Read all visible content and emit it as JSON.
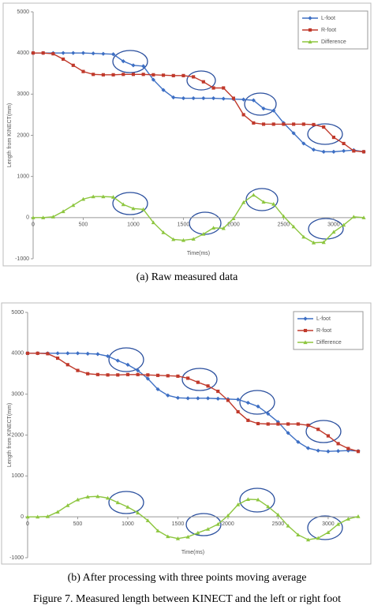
{
  "chart_data": [
    {
      "type": "line",
      "caption": "(a) Raw measured data",
      "x_label": "Time(ms)",
      "y_label": "Length from KINECT(mm)",
      "x": [
        0,
        100,
        200,
        300,
        400,
        500,
        600,
        700,
        800,
        900,
        1000,
        1100,
        1200,
        1300,
        1400,
        1500,
        1600,
        1700,
        1800,
        1900,
        2000,
        2100,
        2200,
        2300,
        2400,
        2500,
        2600,
        2700,
        2800,
        2900,
        3000,
        3100,
        3200,
        3300
      ],
      "series": [
        {
          "name": "L-foot",
          "color": "#3d6fc4",
          "marker": "diamond",
          "values": [
            4000,
            4000,
            4000,
            4000,
            4000,
            4000,
            3990,
            3980,
            3970,
            3800,
            3700,
            3680,
            3350,
            3100,
            2920,
            2900,
            2900,
            2900,
            2900,
            2890,
            2880,
            2870,
            2850,
            2650,
            2600,
            2300,
            2050,
            1800,
            1650,
            1600,
            1600,
            1620,
            1640,
            1600
          ]
        },
        {
          "name": "R-foot",
          "color": "#c0392b",
          "marker": "square",
          "values": [
            4000,
            4000,
            3980,
            3850,
            3700,
            3550,
            3480,
            3470,
            3470,
            3480,
            3480,
            3480,
            3470,
            3460,
            3450,
            3450,
            3420,
            3300,
            3150,
            3150,
            2900,
            2500,
            2300,
            2270,
            2270,
            2270,
            2270,
            2270,
            2260,
            2200,
            1950,
            1800,
            1620,
            1600
          ]
        },
        {
          "name": "Difference",
          "color": "#8dc63f",
          "marker": "triangle",
          "values": [
            0,
            0,
            20,
            150,
            300,
            450,
            510,
            510,
            500,
            320,
            220,
            200,
            -120,
            -360,
            -530,
            -550,
            -520,
            -400,
            -250,
            -260,
            -20,
            370,
            550,
            380,
            330,
            30,
            -220,
            -470,
            -610,
            -600,
            -350,
            -180,
            20,
            0
          ]
        }
      ],
      "xlim": [
        0,
        3300
      ],
      "ylim": [
        -1000,
        5000
      ],
      "xticks": [
        0,
        500,
        1000,
        1500,
        2000,
        2500,
        3000
      ],
      "yticks": [
        -1000,
        0,
        1000,
        2000,
        3000,
        4000,
        5000
      ],
      "grid": false,
      "legend": "upper right"
    },
    {
      "type": "line",
      "caption": "(b) After processing with three points moving average",
      "x_label": "Time(ms)",
      "y_label": "Length from KINECT(mm)",
      "x": [
        0,
        100,
        200,
        300,
        400,
        500,
        600,
        700,
        800,
        900,
        1000,
        1100,
        1200,
        1300,
        1400,
        1500,
        1600,
        1700,
        1800,
        1900,
        2000,
        2100,
        2200,
        2300,
        2400,
        2500,
        2600,
        2700,
        2800,
        2900,
        3000,
        3100,
        3200,
        3300
      ],
      "series": [
        {
          "name": "L-foot",
          "color": "#3d6fc4",
          "marker": "diamond",
          "values": [
            4000,
            4000,
            4000,
            4000,
            4000,
            4000,
            3990,
            3980,
            3930,
            3820,
            3720,
            3580,
            3380,
            3120,
            2970,
            2910,
            2900,
            2900,
            2900,
            2890,
            2880,
            2870,
            2790,
            2700,
            2520,
            2320,
            2050,
            1830,
            1680,
            1620,
            1600,
            1610,
            1620,
            1610
          ]
        },
        {
          "name": "R-foot",
          "color": "#c0392b",
          "marker": "square",
          "values": [
            4000,
            4000,
            3990,
            3880,
            3720,
            3580,
            3500,
            3480,
            3470,
            3470,
            3480,
            3480,
            3470,
            3460,
            3450,
            3440,
            3390,
            3290,
            3200,
            3070,
            2850,
            2570,
            2360,
            2280,
            2270,
            2270,
            2270,
            2270,
            2240,
            2140,
            1980,
            1790,
            1670,
            1600
          ]
        },
        {
          "name": "Difference",
          "color": "#8dc63f",
          "marker": "triangle",
          "values": [
            0,
            0,
            10,
            120,
            280,
            420,
            490,
            500,
            460,
            350,
            240,
            100,
            -90,
            -340,
            -480,
            -530,
            -490,
            -390,
            -300,
            -180,
            30,
            300,
            430,
            420,
            250,
            50,
            -220,
            -440,
            -560,
            -520,
            -380,
            -180,
            -50,
            10
          ]
        }
      ],
      "xlim": [
        0,
        3300
      ],
      "ylim": [
        -1000,
        5000
      ],
      "xticks": [
        0,
        500,
        1000,
        1500,
        2000,
        2500,
        3000
      ],
      "yticks": [
        -1000,
        0,
        1000,
        2000,
        3000,
        4000,
        5000
      ],
      "grid": false,
      "legend": "upper right"
    }
  ],
  "figure_caption": "Figure 7. Measured length between KINECT and the left or right foot"
}
